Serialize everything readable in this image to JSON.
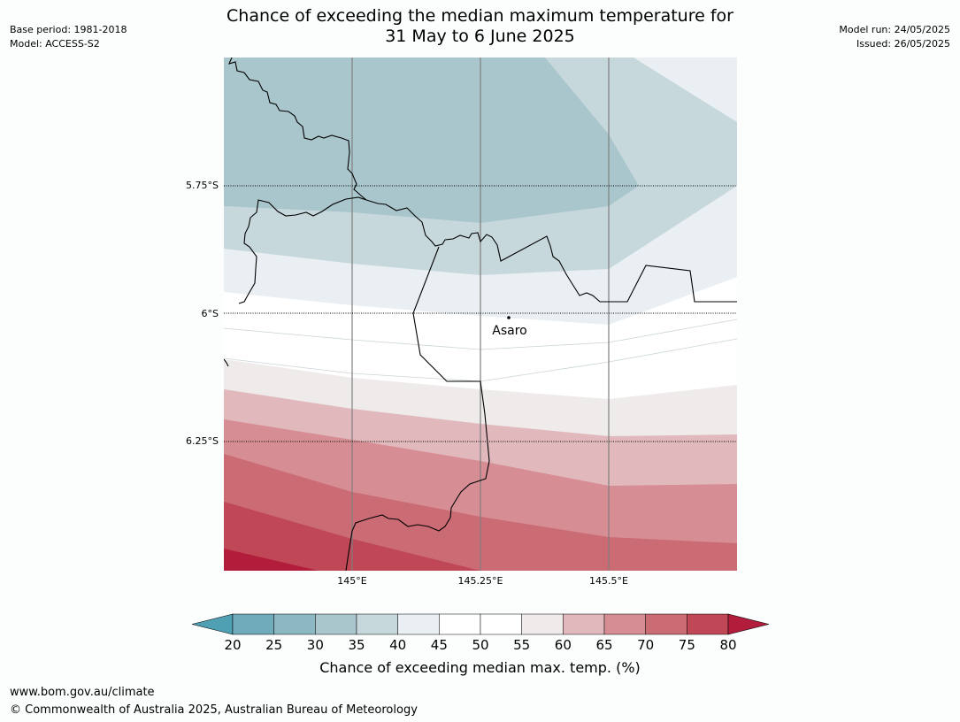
{
  "title": {
    "line1": "Chance of exceeding the median maximum temperature for",
    "line2": "31 May to 6 June 2025"
  },
  "meta_left": {
    "base_period": "Base period: 1981-2018",
    "model": "Model: ACCESS-S2"
  },
  "meta_right": {
    "model_run": "Model run: 24/05/2025",
    "issued": "Issued: 26/05/2025"
  },
  "map": {
    "lat_labels": [
      "5.75°S",
      "6°S",
      "6.25°S"
    ],
    "lon_labels": [
      "145°E",
      "145.25°E",
      "145.5°E"
    ],
    "place": {
      "name": "Asaro"
    }
  },
  "colorbar": {
    "title": "Chance of exceeding median max. temp. (%)",
    "ticks": [
      "20",
      "25",
      "30",
      "35",
      "40",
      "45",
      "50",
      "55",
      "60",
      "65",
      "70",
      "75",
      "80"
    ],
    "colors": [
      "#6fabba",
      "#8bb8c2",
      "#a9c6cc",
      "#c7d8dd",
      "#e9eff2",
      "#ffffff",
      "#ffffff",
      "#eeebea",
      "#e1b9bd",
      "#d68d94",
      "#cb6b74",
      "#c04856",
      "#b21d3c"
    ],
    "under_color": "#4fa0b2",
    "over_color": "#b21d3c"
  },
  "footer": {
    "url": "www.bom.gov.au/climate",
    "copyright": "© Commonwealth of Australia 2025, Australian Bureau of Meteorology"
  }
}
